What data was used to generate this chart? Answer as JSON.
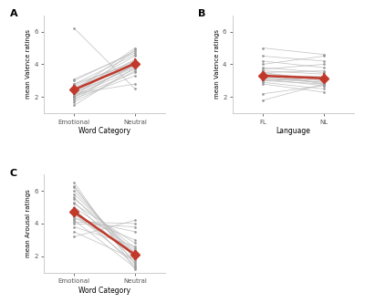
{
  "panel_A": {
    "title": "A",
    "xlabel": "Word Category",
    "ylabel": "mean Valence ratings",
    "xtick_labels": [
      "Emotional",
      "Neutral"
    ],
    "ylim": [
      1,
      7
    ],
    "yticks": [
      2,
      4,
      6
    ],
    "mean_line": [
      2.45,
      4.05
    ],
    "individual_lines": [
      [
        1.5,
        3.8
      ],
      [
        1.7,
        3.6
      ],
      [
        1.8,
        4.2
      ],
      [
        2.0,
        3.5
      ],
      [
        2.0,
        4.0
      ],
      [
        2.1,
        3.7
      ],
      [
        2.2,
        3.9
      ],
      [
        2.3,
        4.1
      ],
      [
        2.3,
        3.8
      ],
      [
        2.4,
        4.3
      ],
      [
        2.4,
        5.0
      ],
      [
        2.5,
        4.5
      ],
      [
        2.5,
        3.9
      ],
      [
        2.6,
        4.0
      ],
      [
        2.7,
        4.2
      ],
      [
        2.8,
        4.1
      ],
      [
        2.8,
        4.6
      ],
      [
        3.0,
        4.8
      ],
      [
        3.1,
        4.7
      ],
      [
        6.2,
        2.5
      ],
      [
        1.9,
        3.3
      ],
      [
        2.2,
        2.8
      ],
      [
        2.0,
        4.9
      ]
    ],
    "mean_color": "#C0392B",
    "line_color": "#BBBBBB",
    "dot_color": "#999999"
  },
  "panel_B": {
    "title": "B",
    "xlabel": "Language",
    "ylabel": "mean Valence ratings",
    "xtick_labels": [
      "FL",
      "NL"
    ],
    "ylim": [
      1,
      7
    ],
    "yticks": [
      2,
      4,
      6
    ],
    "mean_line": [
      3.3,
      3.15
    ],
    "individual_lines": [
      [
        5.0,
        4.6
      ],
      [
        4.5,
        4.2
      ],
      [
        4.2,
        3.8
      ],
      [
        4.0,
        4.5
      ],
      [
        3.8,
        3.5
      ],
      [
        3.7,
        4.0
      ],
      [
        3.6,
        3.4
      ],
      [
        3.5,
        3.6
      ],
      [
        3.5,
        3.0
      ],
      [
        3.4,
        2.8
      ],
      [
        3.4,
        3.2
      ],
      [
        3.3,
        3.3
      ],
      [
        3.3,
        3.1
      ],
      [
        3.2,
        2.9
      ],
      [
        3.2,
        3.0
      ],
      [
        3.1,
        2.7
      ],
      [
        3.1,
        2.9
      ],
      [
        3.0,
        2.8
      ],
      [
        3.0,
        3.2
      ],
      [
        2.9,
        2.5
      ],
      [
        2.8,
        2.3
      ],
      [
        2.2,
        2.7
      ],
      [
        1.8,
        2.8
      ]
    ],
    "mean_color": "#C0392B",
    "line_color": "#BBBBBB",
    "dot_color": "#999999"
  },
  "panel_C": {
    "title": "C",
    "xlabel": "Word Category",
    "ylabel": "mean Arousal ratings",
    "xtick_labels": [
      "Emotional",
      "Neutral"
    ],
    "ylim": [
      1,
      7
    ],
    "yticks": [
      2,
      4,
      6
    ],
    "mean_line": [
      4.7,
      2.1
    ],
    "individual_lines": [
      [
        6.5,
        1.2
      ],
      [
        6.3,
        1.5
      ],
      [
        6.2,
        1.8
      ],
      [
        6.0,
        2.0
      ],
      [
        5.8,
        2.2
      ],
      [
        5.6,
        1.9
      ],
      [
        5.5,
        2.5
      ],
      [
        5.3,
        1.7
      ],
      [
        5.2,
        2.8
      ],
      [
        5.0,
        2.4
      ],
      [
        4.9,
        1.4
      ],
      [
        4.8,
        2.0
      ],
      [
        4.7,
        2.1
      ],
      [
        4.6,
        1.6
      ],
      [
        4.5,
        3.0
      ],
      [
        4.4,
        2.3
      ],
      [
        4.3,
        3.5
      ],
      [
        4.2,
        1.3
      ],
      [
        4.1,
        4.0
      ],
      [
        4.0,
        3.8
      ],
      [
        3.8,
        2.6
      ],
      [
        3.5,
        1.8
      ],
      [
        3.2,
        4.2
      ]
    ],
    "mean_color": "#C0392B",
    "line_color": "#BBBBBB",
    "dot_color": "#999999"
  },
  "background_color": "#FFFFFF",
  "fig_background": "#FFFFFF",
  "spine_color": "#CCCCCC"
}
